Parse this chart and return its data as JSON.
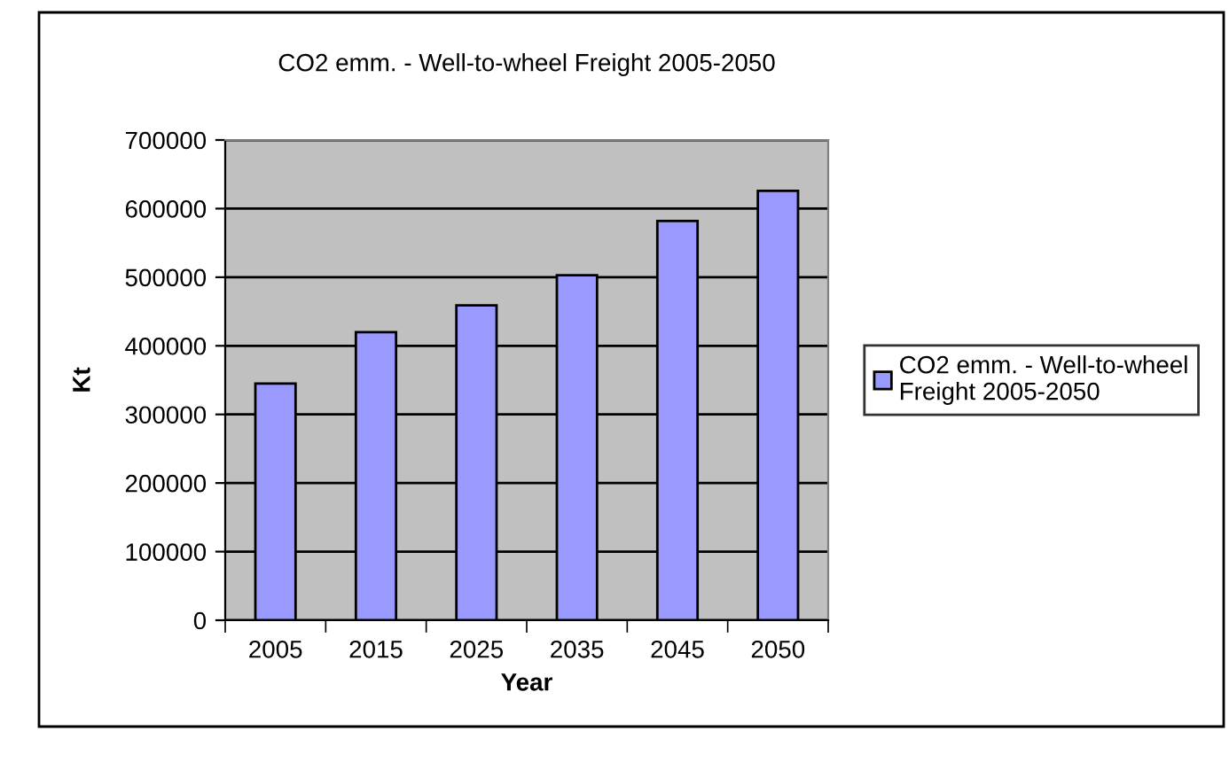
{
  "chart_data": {
    "type": "bar",
    "title": "CO2 emm. - Well-to-wheel Freight 2005-2050",
    "xlabel": "Year",
    "ylabel": "Kt",
    "categories": [
      "2005",
      "2015",
      "2025",
      "2035",
      "2045",
      "2050"
    ],
    "series": [
      {
        "name": "CO2 emm. - Well-to-wheel\nFreight 2005-2050",
        "color": "#9999ff",
        "values": [
          345000,
          420000,
          459000,
          503000,
          582000,
          626000
        ]
      }
    ],
    "ylim": [
      0,
      700000
    ],
    "yticks": [
      0,
      100000,
      200000,
      300000,
      400000,
      500000,
      600000,
      700000
    ],
    "grid": "y",
    "legend": "right"
  }
}
